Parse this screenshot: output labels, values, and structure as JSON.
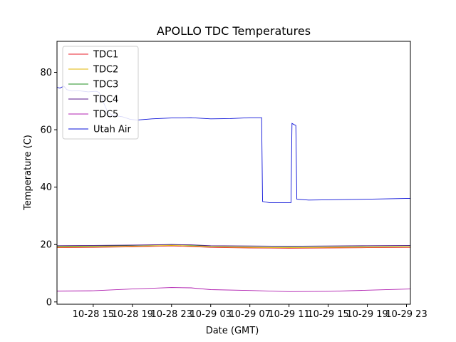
{
  "chart_data": {
    "type": "line",
    "title": "APOLLO TDC Temperatures",
    "xlabel": "Date (GMT)",
    "ylabel": "Temperature (C)",
    "x_unit": "hours since 10-28 00:00 GMT",
    "xlim": [
      11.3,
      47.4
    ],
    "ylim": [
      -0.8,
      90.8
    ],
    "grid": false,
    "legend_position": "top-left",
    "x_ticks": [
      {
        "value": 15,
        "label": "10-28 15"
      },
      {
        "value": 19,
        "label": "10-28 19"
      },
      {
        "value": 23,
        "label": "10-28 23"
      },
      {
        "value": 27,
        "label": "10-29 03"
      },
      {
        "value": 31,
        "label": "10-29 07"
      },
      {
        "value": 35,
        "label": "10-29 11"
      },
      {
        "value": 39,
        "label": "10-29 15"
      },
      {
        "value": 43,
        "label": "10-29 19"
      },
      {
        "value": 47,
        "label": "10-29 23"
      }
    ],
    "y_ticks": [
      {
        "value": 0,
        "label": "0"
      },
      {
        "value": 20,
        "label": "20"
      },
      {
        "value": 40,
        "label": "40"
      },
      {
        "value": 60,
        "label": "60"
      },
      {
        "value": 80,
        "label": "80"
      }
    ],
    "series": [
      {
        "name": "TDC1",
        "color": "#e8212c",
        "points": [
          [
            11.3,
            18.9
          ],
          [
            15,
            19.0
          ],
          [
            19,
            19.2
          ],
          [
            23,
            19.5
          ],
          [
            25,
            19.3
          ],
          [
            27,
            19.0
          ],
          [
            31,
            18.8
          ],
          [
            35,
            18.7
          ],
          [
            39,
            18.8
          ],
          [
            43,
            18.9
          ],
          [
            47.4,
            19.0
          ]
        ]
      },
      {
        "name": "TDC2",
        "color": "#e0b400",
        "points": [
          [
            11.3,
            19.1
          ],
          [
            15,
            19.2
          ],
          [
            19,
            19.4
          ],
          [
            23,
            19.7
          ],
          [
            25,
            19.5
          ],
          [
            27,
            19.2
          ],
          [
            31,
            19.0
          ],
          [
            35,
            18.9
          ],
          [
            39,
            19.0
          ],
          [
            43,
            19.1
          ],
          [
            47.4,
            19.2
          ]
        ]
      },
      {
        "name": "TDC3",
        "color": "#1f8f1f",
        "points": [
          [
            11.3,
            19.4
          ],
          [
            15,
            19.5
          ],
          [
            19,
            19.7
          ],
          [
            23,
            20.0
          ],
          [
            25,
            19.8
          ],
          [
            27,
            19.5
          ],
          [
            31,
            19.4
          ],
          [
            35,
            19.3
          ],
          [
            39,
            19.4
          ],
          [
            43,
            19.5
          ],
          [
            47.4,
            19.6
          ]
        ]
      },
      {
        "name": "TDC4",
        "color": "#5a1a8c",
        "points": [
          [
            11.3,
            19.6
          ],
          [
            15,
            19.7
          ],
          [
            19,
            19.8
          ],
          [
            23,
            20.0
          ],
          [
            25,
            19.9
          ],
          [
            27,
            19.6
          ],
          [
            31,
            19.5
          ],
          [
            35,
            19.4
          ],
          [
            39,
            19.5
          ],
          [
            43,
            19.6
          ],
          [
            47.4,
            19.7
          ]
        ]
      },
      {
        "name": "TDC5",
        "color": "#b01fb0",
        "points": [
          [
            11.3,
            3.8
          ],
          [
            15,
            3.9
          ],
          [
            19,
            4.5
          ],
          [
            23,
            5.0
          ],
          [
            25,
            4.9
          ],
          [
            27,
            4.3
          ],
          [
            31,
            4.0
          ],
          [
            34,
            3.7
          ],
          [
            35,
            3.6
          ],
          [
            39,
            3.7
          ],
          [
            43,
            4.1
          ],
          [
            47.4,
            4.5
          ]
        ]
      },
      {
        "name": "Utah Air",
        "color": "#0a10d8",
        "points": [
          [
            11.3,
            74.8
          ],
          [
            11.6,
            74.5
          ],
          [
            12,
            75.2
          ],
          [
            12.3,
            74.0
          ],
          [
            12.8,
            73.5
          ],
          [
            13.5,
            73.6
          ],
          [
            14.5,
            73.2
          ],
          [
            15.3,
            73.4
          ],
          [
            15.6,
            73.0
          ],
          [
            16.5,
            66.0
          ],
          [
            17,
            65.0
          ],
          [
            18,
            64.5
          ],
          [
            18.8,
            63.6
          ],
          [
            19.5,
            63.4
          ],
          [
            21,
            63.8
          ],
          [
            23,
            64.1
          ],
          [
            25,
            64.2
          ],
          [
            27,
            63.8
          ],
          [
            29,
            63.9
          ],
          [
            31,
            64.2
          ],
          [
            32.2,
            64.2
          ],
          [
            32.3,
            35.0
          ],
          [
            33,
            34.6
          ],
          [
            35.2,
            34.6
          ],
          [
            35.3,
            62.2
          ],
          [
            35.5,
            61.8
          ],
          [
            35.7,
            61.5
          ],
          [
            35.8,
            35.8
          ],
          [
            37,
            35.5
          ],
          [
            39,
            35.6
          ],
          [
            43,
            35.8
          ],
          [
            47.4,
            36.1
          ]
        ]
      }
    ]
  }
}
